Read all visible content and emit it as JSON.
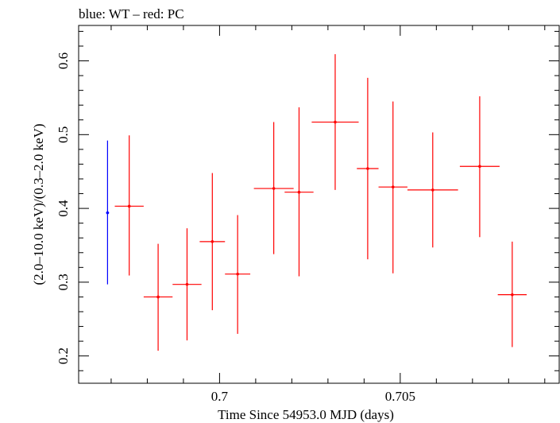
{
  "chart_data": {
    "type": "scatter",
    "title": "blue: WT – red: PC",
    "xlabel": "Time Since 54953.0 MJD (days)",
    "ylabel": "(2.0–10.0 keV)/(0.3–2.0 keV)",
    "xlim": [
      0.6961,
      0.7094
    ],
    "ylim": [
      0.163,
      0.648
    ],
    "x_ticks": [
      0.7,
      0.705
    ],
    "x_tick_labels": [
      "0.7",
      "0.705"
    ],
    "x_minor_step": 0.001,
    "y_ticks": [
      0.2,
      0.3,
      0.4,
      0.5,
      0.6
    ],
    "y_tick_labels": [
      "0.2",
      "0.3",
      "0.4",
      "0.5",
      "0.6"
    ],
    "y_minor_step": 0.02,
    "grid": false,
    "series": [
      {
        "color": "#0000ff",
        "points": [
          {
            "x": 0.6969,
            "xerr": 4e-05,
            "y": 0.394,
            "ylo": 0.297,
            "yhi": 0.492
          }
        ]
      },
      {
        "color": "#ff0000",
        "points": [
          {
            "x": 0.6975,
            "xerr": 0.0004,
            "y": 0.403,
            "ylo": 0.309,
            "yhi": 0.499
          },
          {
            "x": 0.6983,
            "xerr": 0.0004,
            "y": 0.28,
            "ylo": 0.207,
            "yhi": 0.352
          },
          {
            "x": 0.6991,
            "xerr": 0.0004,
            "y": 0.297,
            "ylo": 0.221,
            "yhi": 0.373
          },
          {
            "x": 0.6998,
            "xerr": 0.00035,
            "y": 0.355,
            "ylo": 0.262,
            "yhi": 0.448
          },
          {
            "x": 0.7005,
            "xerr": 0.00035,
            "y": 0.311,
            "ylo": 0.23,
            "yhi": 0.391
          },
          {
            "x": 0.7015,
            "xerr": 0.00055,
            "y": 0.427,
            "ylo": 0.338,
            "yhi": 0.517
          },
          {
            "x": 0.7022,
            "xerr": 0.0004,
            "y": 0.422,
            "ylo": 0.308,
            "yhi": 0.537
          },
          {
            "x": 0.7032,
            "xerr": 0.00065,
            "y": 0.517,
            "ylo": 0.425,
            "yhi": 0.609
          },
          {
            "x": 0.7041,
            "xerr": 0.0003,
            "y": 0.454,
            "ylo": 0.331,
            "yhi": 0.577
          },
          {
            "x": 0.7048,
            "xerr": 0.0004,
            "y": 0.429,
            "ylo": 0.312,
            "yhi": 0.545
          },
          {
            "x": 0.7059,
            "xerr": 0.0007,
            "y": 0.425,
            "ylo": 0.347,
            "yhi": 0.503
          },
          {
            "x": 0.7072,
            "xerr": 0.00055,
            "y": 0.457,
            "ylo": 0.361,
            "yhi": 0.552
          },
          {
            "x": 0.7081,
            "xerr": 0.0004,
            "y": 0.283,
            "ylo": 0.212,
            "yhi": 0.355
          }
        ]
      }
    ]
  }
}
